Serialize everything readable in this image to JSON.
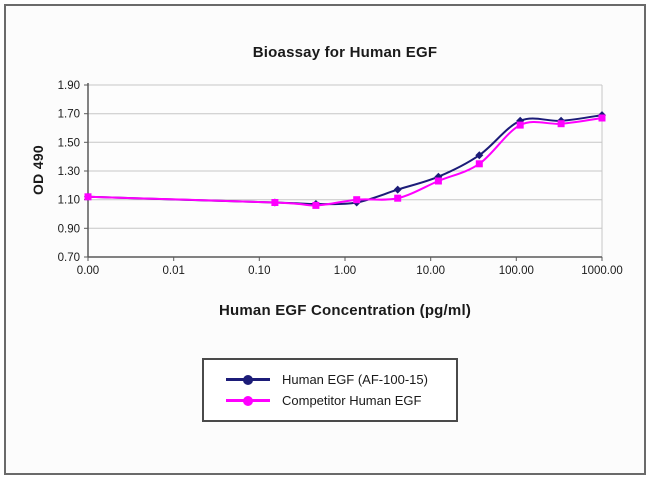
{
  "chart_data": {
    "type": "line",
    "title": "Bioassay for Human EGF",
    "xlabel": "Human EGF Concentration (pg/ml)",
    "ylabel": "OD 490",
    "x_scale": "log, zero sample plotted at origin",
    "ylim": [
      0.7,
      1.9
    ],
    "y_tick_step": 0.2,
    "x_tick_labels": [
      "0.00",
      "0.01",
      "0.10",
      "1.00",
      "10.00",
      "100.00",
      "1000.00"
    ],
    "y_tick_labels": [
      "1.90",
      "1.70",
      "1.50",
      "1.30",
      "1.10",
      "0.90",
      "0.70"
    ],
    "grid": "horizontal",
    "legend_position": "below chart in bordered box",
    "x": [
      0,
      0.152,
      0.457,
      1.37,
      4.12,
      12.3,
      37,
      111.1,
      333.3,
      1000
    ],
    "series": [
      {
        "name": "Human EGF (AF-100-15)",
        "color": "#1c1c78",
        "marker": "diamond",
        "values": [
          1.12,
          1.08,
          1.07,
          1.08,
          1.17,
          1.26,
          1.41,
          1.65,
          1.65,
          1.69
        ]
      },
      {
        "name": "Competitor Human EGF",
        "color": "#ff00ff",
        "marker": "square",
        "values": [
          1.12,
          1.08,
          1.06,
          1.1,
          1.11,
          1.23,
          1.35,
          1.62,
          1.63,
          1.67
        ]
      }
    ]
  },
  "colors": {
    "grid": "#c6c6c6",
    "axis": "#595959",
    "plot_right_edge": "#c6c6c6",
    "tick_text": "#1a1a1a",
    "frame_border": "#6a6a6a",
    "background": "#fcfcfc"
  }
}
